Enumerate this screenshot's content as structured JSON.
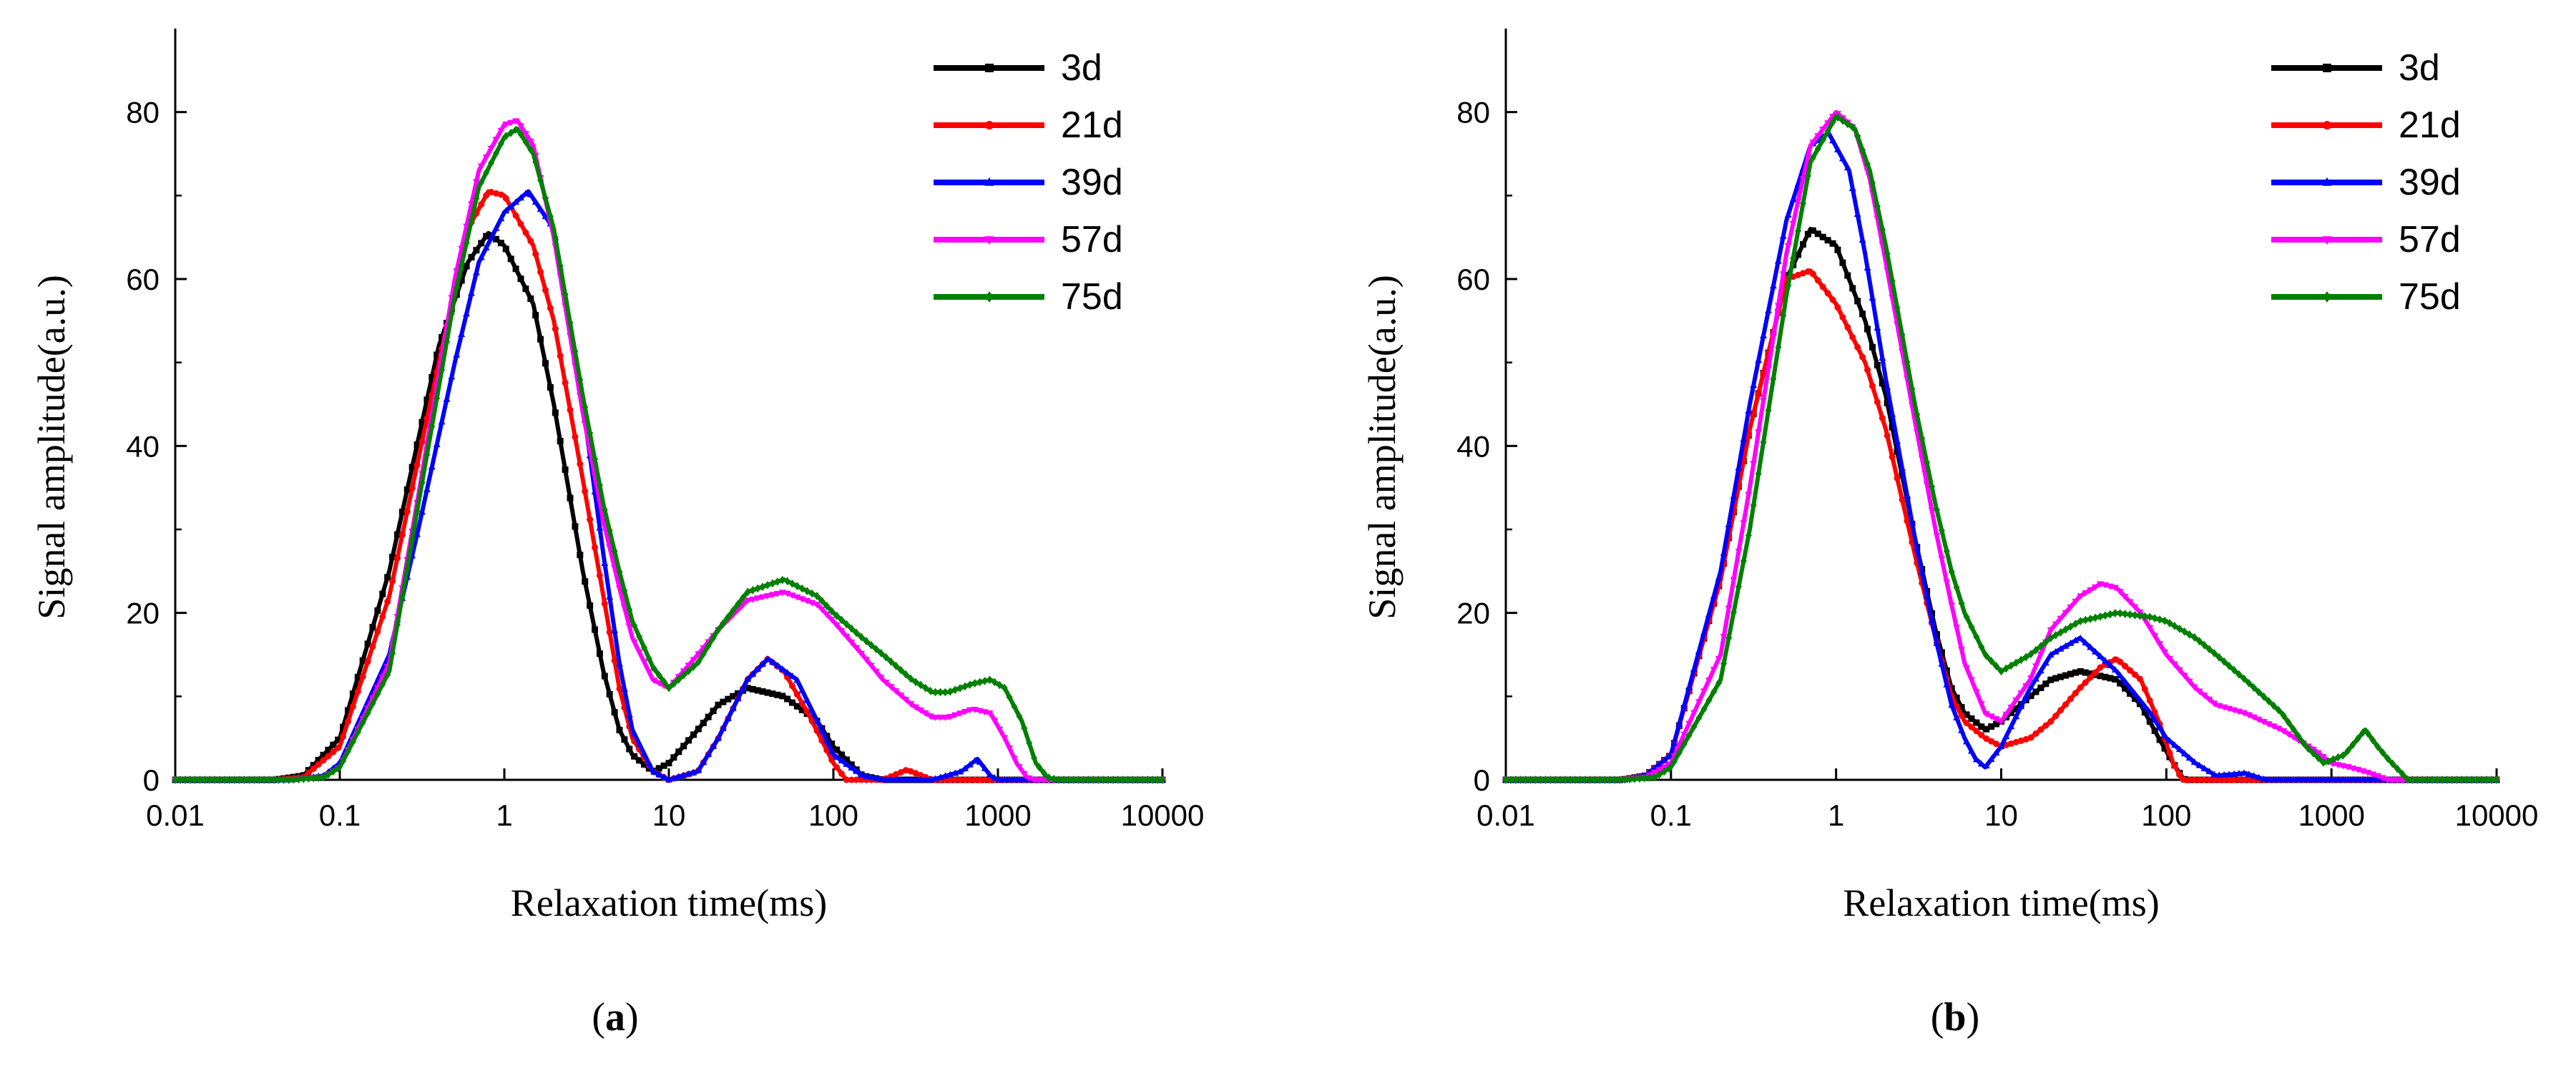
{
  "figure": {
    "panels": [
      {
        "id": "a",
        "caption": "(a)",
        "caption_letter": "a"
      },
      {
        "id": "b",
        "caption": "(b)",
        "caption_letter": "b"
      }
    ]
  },
  "chart_data": [
    {
      "type": "line",
      "panel": "a",
      "title": "",
      "xlabel": "Relaxation time(ms)",
      "ylabel": "Signal amplitude(a.u.)",
      "xscale": "log",
      "xlim": [
        0.01,
        10000
      ],
      "ylim": [
        0,
        90
      ],
      "xticks": [
        0.01,
        0.1,
        1,
        10,
        100,
        1000,
        10000
      ],
      "xtick_labels": [
        "0.01",
        "0.1",
        "1",
        "10",
        "100",
        "1000",
        "10000"
      ],
      "yticks": [
        0,
        20,
        40,
        60,
        80
      ],
      "ytick_labels": [
        "0",
        "20",
        "40",
        "60",
        "80"
      ],
      "legend_position": "top-right",
      "series": [
        {
          "name": "3d",
          "color": "#000000",
          "marker": "square",
          "x": [
            0.01,
            0.04,
            0.06,
            0.1,
            0.2,
            0.4,
            0.6,
            0.8,
            1,
            1.5,
            2,
            3,
            4,
            5,
            6,
            8,
            10,
            15,
            20,
            30,
            50,
            80,
            100,
            150,
            200,
            1000,
            10000
          ],
          "y": [
            0,
            0,
            0.5,
            5,
            25,
            52,
            62,
            65.5,
            64,
            57,
            45,
            25,
            13,
            6,
            3,
            1,
            2,
            6,
            9,
            11,
            10,
            7,
            4,
            0.5,
            0,
            0,
            0
          ]
        },
        {
          "name": "21d",
          "color": "#ff0000",
          "marker": "circle",
          "x": [
            0.01,
            0.04,
            0.06,
            0.1,
            0.2,
            0.4,
            0.6,
            0.8,
            1,
            1.5,
            2,
            3,
            4,
            5,
            6,
            8,
            10,
            15,
            20,
            30,
            40,
            50,
            70,
            100,
            120,
            150,
            200,
            280,
            400,
            1000,
            10000
          ],
          "y": [
            0,
            0,
            0.3,
            4,
            22,
            50,
            66,
            70.5,
            70,
            64,
            55,
            36,
            22,
            11,
            5,
            1,
            0,
            1,
            5,
            12,
            14.5,
            13,
            8,
            2,
            0,
            0,
            0,
            1.2,
            0,
            0,
            0
          ]
        },
        {
          "name": "39d",
          "color": "#0000ff",
          "marker": "triangle",
          "x": [
            0.01,
            0.05,
            0.08,
            0.1,
            0.2,
            0.3,
            0.5,
            0.7,
            1,
            1.4,
            2,
            3,
            4,
            5,
            6,
            8,
            10,
            15,
            20,
            30,
            40,
            60,
            80,
            100,
            150,
            200,
            400,
            600,
            750,
            900,
            1000,
            10000
          ],
          "y": [
            0,
            0,
            0.5,
            2,
            15,
            30,
            50,
            62,
            68,
            70.5,
            66,
            45,
            27,
            14,
            6,
            1,
            0,
            1,
            5,
            12,
            14.5,
            12,
            7,
            3,
            0.5,
            0,
            0,
            1,
            2.5,
            0.5,
            0,
            0
          ]
        },
        {
          "name": "57d",
          "color": "#ff00ff",
          "marker": "triangle-down",
          "x": [
            0.01,
            0.05,
            0.08,
            0.1,
            0.2,
            0.3,
            0.5,
            0.7,
            1,
            1.2,
            1.5,
            2,
            3,
            4,
            5,
            6,
            8,
            10,
            15,
            20,
            30,
            50,
            80,
            100,
            150,
            200,
            300,
            400,
            500,
            700,
            900,
            1100,
            1300,
            1500,
            1700,
            10000
          ],
          "y": [
            0,
            0,
            0.3,
            1.5,
            14,
            34,
            60,
            73,
            78.5,
            79,
            76,
            65,
            44,
            31,
            23,
            17,
            12,
            11,
            15,
            18,
            21.5,
            22.5,
            21,
            19,
            15,
            12,
            9,
            7.5,
            7.5,
            8.5,
            8,
            5,
            2,
            0.3,
            0,
            0
          ]
        },
        {
          "name": "75d",
          "color": "#008000",
          "marker": "diamond",
          "x": [
            0.01,
            0.05,
            0.08,
            0.1,
            0.2,
            0.3,
            0.5,
            0.7,
            1,
            1.2,
            1.5,
            2,
            3,
            4,
            5,
            6,
            8,
            10,
            15,
            20,
            30,
            50,
            80,
            100,
            150,
            200,
            300,
            400,
            500,
            700,
            900,
            1100,
            1400,
            1700,
            2000,
            2300,
            10000
          ],
          "y": [
            0,
            0,
            0.3,
            1.5,
            13,
            33,
            58,
            71,
            77,
            78,
            75,
            66,
            46,
            33,
            25,
            19,
            13.5,
            11,
            14,
            18,
            22.5,
            24,
            22,
            20,
            17,
            15,
            12,
            10.5,
            10.5,
            11.5,
            12,
            11,
            7,
            2,
            0.3,
            0,
            0
          ]
        }
      ]
    },
    {
      "type": "line",
      "panel": "b",
      "title": "",
      "xlabel": "Relaxation time(ms)",
      "ylabel": "Signal amplitude(a.u.)",
      "xscale": "log",
      "xlim": [
        0.01,
        10000
      ],
      "ylim": [
        0,
        90
      ],
      "xticks": [
        0.01,
        0.1,
        1,
        10,
        100,
        1000,
        10000
      ],
      "xtick_labels": [
        "0.01",
        "0.1",
        "1",
        "10",
        "100",
        "1000",
        "10000"
      ],
      "yticks": [
        0,
        20,
        40,
        60,
        80
      ],
      "ytick_labels": [
        "0",
        "20",
        "40",
        "60",
        "80"
      ],
      "legend_position": "top-right",
      "series": [
        {
          "name": "3d",
          "color": "#000000",
          "marker": "square",
          "x": [
            0.01,
            0.05,
            0.07,
            0.1,
            0.2,
            0.3,
            0.5,
            0.7,
            1,
            1.5,
            2,
            3,
            4,
            5,
            6,
            8,
            10,
            15,
            20,
            30,
            50,
            70,
            90,
            110,
            125,
            130,
            1000,
            10000
          ],
          "y": [
            0,
            0,
            0.5,
            3,
            24,
            42,
            60,
            66,
            64,
            55,
            46,
            29,
            18,
            11,
            8,
            6,
            7,
            10,
            12,
            13,
            12,
            9,
            5,
            2,
            0.3,
            0,
            0,
            0
          ]
        },
        {
          "name": "21d",
          "color": "#ff0000",
          "marker": "circle",
          "x": [
            0.01,
            0.05,
            0.07,
            0.1,
            0.2,
            0.3,
            0.5,
            0.7,
            1,
            1.5,
            2,
            3,
            4,
            5,
            6,
            8,
            10,
            15,
            20,
            30,
            40,
            50,
            70,
            90,
            110,
            125,
            1000,
            10000
          ],
          "y": [
            0,
            0,
            0.5,
            3,
            24,
            42,
            60,
            61,
            57,
            50,
            42,
            27,
            17,
            10,
            7,
            5,
            4,
            5,
            7,
            11,
            13.5,
            14.5,
            12,
            7,
            2,
            0,
            0,
            0
          ]
        },
        {
          "name": "39d",
          "color": "#0000ff",
          "marker": "triangle",
          "x": [
            0.01,
            0.05,
            0.07,
            0.1,
            0.2,
            0.3,
            0.5,
            0.7,
            0.9,
            1.2,
            1.5,
            2,
            3,
            4,
            5,
            6,
            7,
            8,
            10,
            15,
            20,
            30,
            50,
            80,
            100,
            150,
            200,
            300,
            400,
            500,
            1000,
            10000
          ],
          "y": [
            0,
            0,
            0.5,
            3,
            25,
            45,
            67,
            76,
            77.5,
            73,
            63,
            48,
            29,
            17,
            9,
            5,
            2.5,
            1.5,
            4,
            11,
            15,
            17,
            13,
            8,
            5,
            2,
            0.5,
            0.8,
            0,
            0,
            0,
            0
          ]
        },
        {
          "name": "57d",
          "color": "#ff00ff",
          "marker": "triangle-down",
          "x": [
            0.01,
            0.05,
            0.07,
            0.1,
            0.2,
            0.3,
            0.5,
            0.7,
            1,
            1.3,
            1.6,
            2,
            3,
            4,
            5,
            6,
            8,
            10,
            15,
            20,
            30,
            40,
            50,
            70,
            100,
            150,
            200,
            300,
            500,
            800,
            1000,
            1300,
            1600,
            1900,
            2200,
            10000
          ],
          "y": [
            0,
            0,
            0.3,
            2,
            15,
            35,
            63,
            76,
            80,
            78,
            72,
            62,
            43,
            30,
            21,
            14,
            8,
            7,
            12,
            18,
            22,
            23.5,
            23,
            20,
            15,
            11,
            9,
            8,
            6,
            3.5,
            2,
            1.5,
            1,
            0.5,
            0,
            0
          ]
        },
        {
          "name": "75d",
          "color": "#008000",
          "marker": "diamond",
          "x": [
            0.01,
            0.05,
            0.08,
            0.1,
            0.2,
            0.3,
            0.5,
            0.7,
            1,
            1.3,
            1.6,
            2,
            3,
            4,
            5,
            6,
            8,
            10,
            15,
            20,
            30,
            50,
            80,
            100,
            150,
            200,
            300,
            500,
            700,
            900,
            1200,
            1600,
            1900,
            2200,
            2600,
            2900,
            10000
          ],
          "y": [
            0,
            0,
            0.3,
            1.5,
            12,
            30,
            58,
            74,
            79.5,
            78,
            73,
            64,
            45,
            33,
            25,
            20,
            15,
            13,
            15,
            17,
            19,
            20,
            19.5,
            19,
            17,
            15,
            12,
            8,
            4,
            2,
            3,
            6,
            4,
            2.5,
            1,
            0,
            0
          ]
        }
      ]
    }
  ]
}
